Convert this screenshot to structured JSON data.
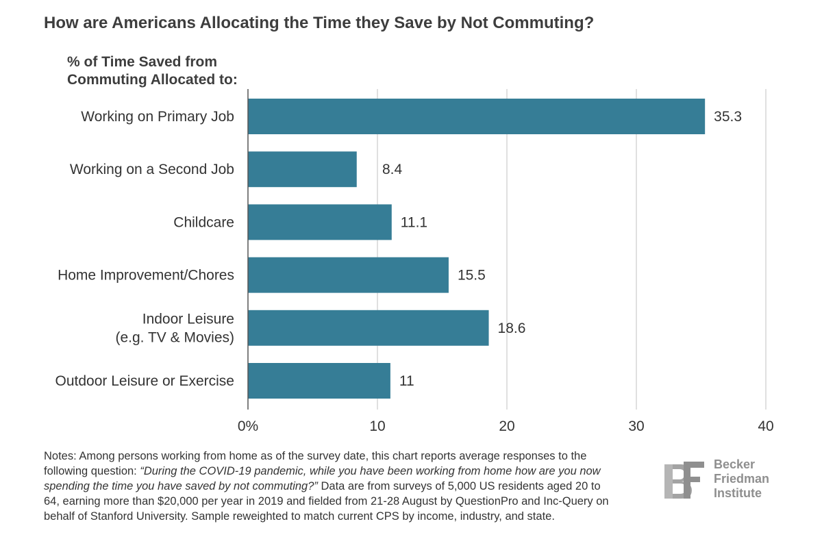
{
  "chart_data": {
    "type": "bar",
    "orientation": "horizontal",
    "title": "How are Americans Allocating the Time they Save by Not Commuting?",
    "ylabel_lines": [
      "% of Time Saved from",
      "Commuting Allocated to:"
    ],
    "categories": [
      [
        "Working on Primary Job"
      ],
      [
        "Working on a Second Job"
      ],
      [
        "Childcare"
      ],
      [
        "Home Improvement/Chores"
      ],
      [
        "Indoor Leisure",
        "(e.g. TV & Movies)"
      ],
      [
        "Outdoor Leisure or Exercise"
      ]
    ],
    "values": [
      35.3,
      8.4,
      11.1,
      15.5,
      18.6,
      11
    ],
    "value_labels": [
      "35.3",
      "8.4",
      "11.1",
      "15.5",
      "18.6",
      "11"
    ],
    "xlim": [
      0,
      40
    ],
    "xticks": [
      0,
      10,
      20,
      30,
      40
    ],
    "xtick_labels": [
      "0%",
      "10",
      "20",
      "30",
      "40"
    ],
    "grid": true,
    "bar_color": "#367d96",
    "grid_color": "#cccccc",
    "axis_color": "#555555"
  },
  "notes": {
    "prefix": "Notes: Among persons working from home as of the survey date, this chart reports average responses to the following question: ",
    "question": "“During the COVID-19 pandemic, while you have been working from home how are you now spending the time you have saved by not commuting?”",
    "suffix": " Data are from surveys of 5,000 US residents aged 20 to 64, earning more than $20,000 per year in 2019 and fielded from 21-28 August by QuestionPro and Inc-Query on behalf of Stanford University. Sample reweighted to match current CPS by income, industry, and state."
  },
  "logo": {
    "name_lines": [
      "Becker",
      "Friedman",
      "Institute"
    ],
    "color": "#8f8f8f"
  }
}
